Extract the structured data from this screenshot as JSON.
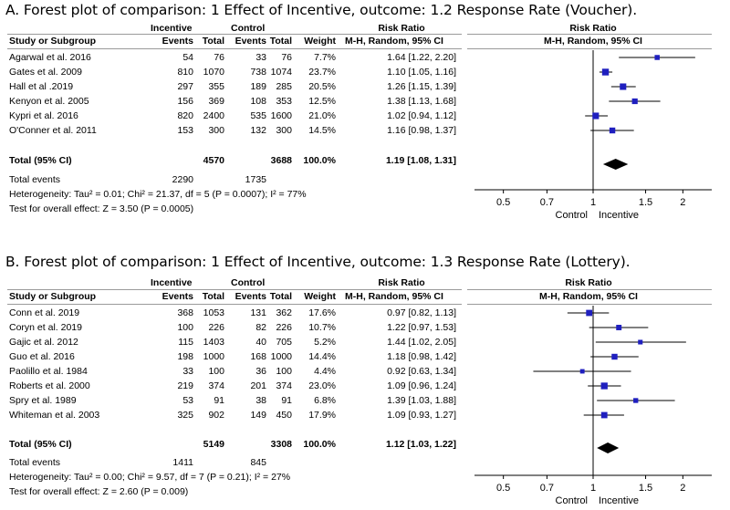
{
  "panels": [
    {
      "title": "A. Forest plot of comparison: 1 Effect of Incentive, outcome: 1.2 Response Rate (Voucher).",
      "headers": {
        "group_incentive": "Incentive",
        "group_control": "Control",
        "risk_ratio": "Risk Ratio",
        "study": "Study or Subgroup",
        "events": "Events",
        "total": "Total",
        "weight": "Weight",
        "method": "M-H, Random, 95% CI"
      },
      "rows": [
        {
          "study": "Agarwal et al. 2016",
          "ie": "54",
          "it": "76",
          "ce": "33",
          "ct": "76",
          "weight": "7.7%",
          "ci_text": "1.64 [1.22, 2.20]"
        },
        {
          "study": "Gates et al. 2009",
          "ie": "810",
          "it": "1070",
          "ce": "738",
          "ct": "1074",
          "weight": "23.7%",
          "ci_text": "1.10 [1.05, 1.16]"
        },
        {
          "study": "Hall et al .2019",
          "ie": "297",
          "it": "355",
          "ce": "189",
          "ct": "285",
          "weight": "20.5%",
          "ci_text": "1.26 [1.15, 1.39]"
        },
        {
          "study": "Kenyon et al. 2005",
          "ie": "156",
          "it": "369",
          "ce": "108",
          "ct": "353",
          "weight": "12.5%",
          "ci_text": "1.38 [1.13, 1.68]"
        },
        {
          "study": "Kypri et al. 2016",
          "ie": "820",
          "it": "2400",
          "ce": "535",
          "ct": "1600",
          "weight": "21.0%",
          "ci_text": "1.02 [0.94, 1.12]"
        },
        {
          "study": "O'Conner et al. 2011",
          "ie": "153",
          "it": "300",
          "ce": "132",
          "ct": "300",
          "weight": "14.5%",
          "ci_text": "1.16 [0.98, 1.37]"
        }
      ],
      "total": {
        "label": "Total (95% CI)",
        "it": "4570",
        "ct": "3688",
        "weight": "100.0%",
        "ci_text": "1.19 [1.08, 1.31]"
      },
      "total_events": {
        "label": "Total events",
        "ie": "2290",
        "ce": "1735"
      },
      "heterogeneity": "Heterogeneity: Tau² = 0.01; Chi² = 21.37, df = 5 (P = 0.0007); I² = 77%",
      "overall_effect": "Test for overall effect: Z = 3.50 (P = 0.0005)",
      "axis_labels": {
        "left": "Control",
        "right": "Incentive"
      }
    },
    {
      "title": "B. Forest plot of comparison: 1 Effect of Incentive, outcome: 1.3 Response Rate (Lottery).",
      "headers": {
        "group_incentive": "Incentive",
        "group_control": "Control",
        "risk_ratio": "Risk Ratio",
        "study": "Study or Subgroup",
        "events": "Events",
        "total": "Total",
        "weight": "Weight",
        "method": "M-H, Random, 95% CI"
      },
      "rows": [
        {
          "study": "Conn et al. 2019",
          "ie": "368",
          "it": "1053",
          "ce": "131",
          "ct": "362",
          "weight": "17.6%",
          "ci_text": "0.97 [0.82, 1.13]"
        },
        {
          "study": "Coryn et al. 2019",
          "ie": "100",
          "it": "226",
          "ce": "82",
          "ct": "226",
          "weight": "10.7%",
          "ci_text": "1.22 [0.97, 1.53]"
        },
        {
          "study": "Gajic et al. 2012",
          "ie": "115",
          "it": "1403",
          "ce": "40",
          "ct": "705",
          "weight": "5.2%",
          "ci_text": "1.44 [1.02, 2.05]"
        },
        {
          "study": "Guo et al. 2016",
          "ie": "198",
          "it": "1000",
          "ce": "168",
          "ct": "1000",
          "weight": "14.4%",
          "ci_text": "1.18 [0.98, 1.42]"
        },
        {
          "study": "Paolillo et al. 1984",
          "ie": "33",
          "it": "100",
          "ce": "36",
          "ct": "100",
          "weight": "4.4%",
          "ci_text": "0.92 [0.63, 1.34]"
        },
        {
          "study": "Roberts et al. 2000",
          "ie": "219",
          "it": "374",
          "ce": "201",
          "ct": "374",
          "weight": "23.0%",
          "ci_text": "1.09 [0.96, 1.24]"
        },
        {
          "study": "Spry et al. 1989",
          "ie": "53",
          "it": "91",
          "ce": "38",
          "ct": "91",
          "weight": "6.8%",
          "ci_text": "1.39 [1.03, 1.88]"
        },
        {
          "study": "Whiteman et al. 2003",
          "ie": "325",
          "it": "902",
          "ce": "149",
          "ct": "450",
          "weight": "17.9%",
          "ci_text": "1.09 [0.93, 1.27]"
        }
      ],
      "total": {
        "label": "Total (95% CI)",
        "it": "5149",
        "ct": "3308",
        "weight": "100.0%",
        "ci_text": "1.12 [1.03, 1.22]"
      },
      "total_events": {
        "label": "Total events",
        "ie": "1411",
        "ce": "845"
      },
      "heterogeneity": "Heterogeneity: Tau² = 0.00; Chi² = 9.57, df = 7 (P = 0.21); I² = 27%",
      "overall_effect": "Test for overall effect: Z = 2.60 (P = 0.009)",
      "axis_labels": {
        "left": "Control",
        "right": "Incentive"
      }
    }
  ],
  "chart_data": [
    {
      "type": "forest",
      "title": "A. Forest plot of comparison: 1 Effect of Incentive, outcome: 1.2 Response Rate (Voucher).",
      "xscale": "log",
      "xlim": [
        0.4,
        2.5
      ],
      "xticks": [
        0.5,
        0.7,
        1,
        1.5,
        2
      ],
      "xtick_labels": [
        "0.5",
        "0.7",
        "1",
        "1.5",
        "2"
      ],
      "studies": [
        {
          "name": "Agarwal et al. 2016",
          "rr": 1.64,
          "lo": 1.22,
          "hi": 2.2,
          "weight": 7.7
        },
        {
          "name": "Gates et al. 2009",
          "rr": 1.1,
          "lo": 1.05,
          "hi": 1.16,
          "weight": 23.7
        },
        {
          "name": "Hall et al .2019",
          "rr": 1.26,
          "lo": 1.15,
          "hi": 1.39,
          "weight": 20.5
        },
        {
          "name": "Kenyon et al. 2005",
          "rr": 1.38,
          "lo": 1.13,
          "hi": 1.68,
          "weight": 12.5
        },
        {
          "name": "Kypri et al. 2016",
          "rr": 1.02,
          "lo": 0.94,
          "hi": 1.12,
          "weight": 21.0
        },
        {
          "name": "O'Conner et al. 2011",
          "rr": 1.16,
          "lo": 0.98,
          "hi": 1.37,
          "weight": 14.5
        }
      ],
      "pooled": {
        "rr": 1.19,
        "lo": 1.08,
        "hi": 1.31
      },
      "xlabel_left": "Control",
      "xlabel_right": "Incentive",
      "marker_color": "#1f1fbf"
    },
    {
      "type": "forest",
      "title": "B. Forest plot of comparison: 1 Effect of Incentive, outcome: 1.3 Response Rate (Lottery).",
      "xscale": "log",
      "xlim": [
        0.4,
        2.5
      ],
      "xticks": [
        0.5,
        0.7,
        1,
        1.5,
        2
      ],
      "xtick_labels": [
        "0.5",
        "0.7",
        "1",
        "1.5",
        "2"
      ],
      "studies": [
        {
          "name": "Conn et al. 2019",
          "rr": 0.97,
          "lo": 0.82,
          "hi": 1.13,
          "weight": 17.6
        },
        {
          "name": "Coryn et al. 2019",
          "rr": 1.22,
          "lo": 0.97,
          "hi": 1.53,
          "weight": 10.7
        },
        {
          "name": "Gajic et al. 2012",
          "rr": 1.44,
          "lo": 1.02,
          "hi": 2.05,
          "weight": 5.2
        },
        {
          "name": "Guo et al. 2016",
          "rr": 1.18,
          "lo": 0.98,
          "hi": 1.42,
          "weight": 14.4
        },
        {
          "name": "Paolillo et al. 1984",
          "rr": 0.92,
          "lo": 0.63,
          "hi": 1.34,
          "weight": 4.4
        },
        {
          "name": "Roberts et al. 2000",
          "rr": 1.09,
          "lo": 0.96,
          "hi": 1.24,
          "weight": 23.0
        },
        {
          "name": "Spry et al. 1989",
          "rr": 1.39,
          "lo": 1.03,
          "hi": 1.88,
          "weight": 6.8
        },
        {
          "name": "Whiteman et al. 2003",
          "rr": 1.09,
          "lo": 0.93,
          "hi": 1.27,
          "weight": 17.9
        }
      ],
      "pooled": {
        "rr": 1.12,
        "lo": 1.03,
        "hi": 1.22
      },
      "xlabel_left": "Control",
      "xlabel_right": "Incentive",
      "marker_color": "#1f1fbf"
    }
  ]
}
